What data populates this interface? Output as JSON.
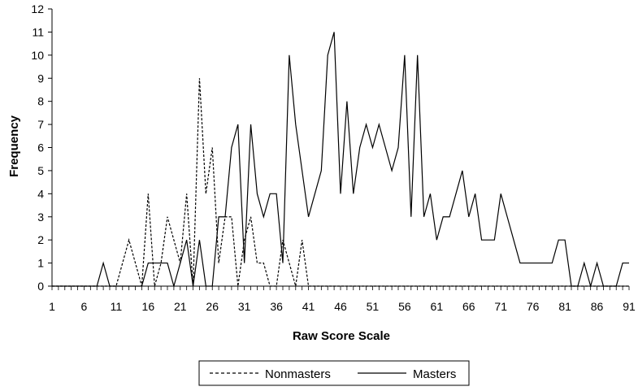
{
  "chart_data": {
    "type": "line",
    "xlabel": "Raw Score Scale",
    "ylabel": "Frequency",
    "xlim": [
      1,
      91
    ],
    "ylim": [
      0,
      12
    ],
    "x_tick_labels": [
      "1",
      "6",
      "11",
      "16",
      "21",
      "26",
      "31",
      "36",
      "41",
      "46",
      "51",
      "56",
      "61",
      "66",
      "71",
      "76",
      "81",
      "86",
      "91"
    ],
    "y_tick_labels": [
      "0",
      "1",
      "2",
      "3",
      "4",
      "5",
      "6",
      "7",
      "8",
      "9",
      "10",
      "11",
      "12"
    ],
    "legend_position": "bottom",
    "series": [
      {
        "name": "Nonmasters",
        "style": "dashed",
        "x": [
          1,
          2,
          3,
          4,
          5,
          6,
          7,
          8,
          9,
          10,
          11,
          12,
          13,
          14,
          15,
          16,
          17,
          18,
          19,
          20,
          21,
          22,
          23,
          24,
          25,
          26,
          27,
          28,
          29,
          30,
          31,
          32,
          33,
          34,
          35,
          36,
          37,
          38,
          39,
          40,
          41,
          42,
          43,
          44,
          45,
          46,
          47,
          48,
          49,
          50,
          51,
          52,
          53,
          54,
          55,
          56,
          57,
          58,
          59,
          60,
          61,
          62,
          63,
          64,
          65,
          66,
          67,
          68,
          69,
          70,
          71,
          72,
          73,
          74,
          75,
          76,
          77,
          78,
          79,
          80,
          81,
          82,
          83,
          84,
          85,
          86,
          87,
          88,
          89,
          90,
          91
        ],
        "values": [
          0,
          0,
          0,
          0,
          0,
          0,
          0,
          0,
          0,
          0,
          0,
          1,
          2,
          1,
          0,
          4,
          0,
          1,
          3,
          2,
          1,
          4,
          0,
          9,
          4,
          6,
          1,
          3,
          3,
          0,
          2,
          3,
          1,
          1,
          0,
          0,
          2,
          1,
          0,
          2,
          0,
          0,
          0,
          0,
          0,
          0,
          0,
          0,
          0,
          0,
          0,
          0,
          0,
          0,
          0,
          0,
          0,
          0,
          0,
          0,
          0,
          0,
          0,
          0,
          0,
          0,
          0,
          0,
          0,
          0,
          0,
          0,
          0,
          0,
          0,
          0,
          0,
          0,
          0,
          0,
          0,
          0,
          0,
          0,
          0,
          0,
          0,
          0,
          0,
          0,
          0
        ]
      },
      {
        "name": "Masters",
        "style": "solid",
        "x": [
          1,
          2,
          3,
          4,
          5,
          6,
          7,
          8,
          9,
          10,
          11,
          12,
          13,
          14,
          15,
          16,
          17,
          18,
          19,
          20,
          21,
          22,
          23,
          24,
          25,
          26,
          27,
          28,
          29,
          30,
          31,
          32,
          33,
          34,
          35,
          36,
          37,
          38,
          39,
          40,
          41,
          42,
          43,
          44,
          45,
          46,
          47,
          48,
          49,
          50,
          51,
          52,
          53,
          54,
          55,
          56,
          57,
          58,
          59,
          60,
          61,
          62,
          63,
          64,
          65,
          66,
          67,
          68,
          69,
          70,
          71,
          72,
          73,
          74,
          75,
          76,
          77,
          78,
          79,
          80,
          81,
          82,
          83,
          84,
          85,
          86,
          87,
          88,
          89,
          90,
          91
        ],
        "values": [
          0,
          0,
          0,
          0,
          0,
          0,
          0,
          0,
          1,
          0,
          0,
          0,
          0,
          0,
          0,
          1,
          1,
          1,
          1,
          0,
          1,
          2,
          0,
          2,
          0,
          0,
          3,
          3,
          6,
          7,
          1,
          7,
          4,
          3,
          4,
          4,
          1,
          10,
          7,
          5,
          3,
          4,
          5,
          10,
          11,
          4,
          8,
          4,
          6,
          7,
          6,
          7,
          6,
          5,
          6,
          10,
          3,
          10,
          3,
          4,
          2,
          3,
          3,
          4,
          5,
          3,
          4,
          2,
          2,
          2,
          4,
          3,
          2,
          1,
          1,
          1,
          1,
          1,
          1,
          2,
          2,
          0,
          0,
          1,
          0,
          1,
          0,
          0,
          0,
          1,
          1
        ]
      }
    ]
  }
}
